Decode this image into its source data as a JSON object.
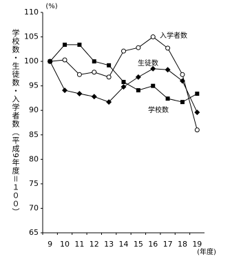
{
  "chart_data": {
    "type": "line",
    "y_label": "学校数・生徒数・入学者数（平成9年度＝１００）",
    "y_unit": "(%)",
    "x_unit": "(年度)",
    "categories": [
      "9",
      "10",
      "11",
      "12",
      "13",
      "14",
      "15",
      "16",
      "17",
      "18",
      "19"
    ],
    "series": [
      {
        "name": "入学者数",
        "color": "#000000",
        "marker": "circle",
        "values": [
          100,
          100.3,
          97.3,
          97.8,
          96.8,
          102.1,
          102.8,
          105,
          102.7,
          97.3,
          86
        ]
      },
      {
        "name": "生徒数",
        "color": "#000000",
        "marker": "diamond",
        "values": [
          100,
          94.1,
          93.4,
          92.8,
          91.7,
          94.8,
          96.8,
          98.5,
          98.3,
          96,
          89.6
        ]
      },
      {
        "name": "学校数",
        "color": "#000000",
        "marker": "square",
        "values": [
          100,
          103.4,
          103.4,
          100,
          99.2,
          95.8,
          94.1,
          95,
          92.4,
          91.7,
          93.4
        ]
      }
    ],
    "ylim": [
      65,
      110
    ],
    "yticks": [
      65,
      70,
      75,
      80,
      85,
      90,
      95,
      100,
      105,
      110
    ],
    "grid": false
  }
}
